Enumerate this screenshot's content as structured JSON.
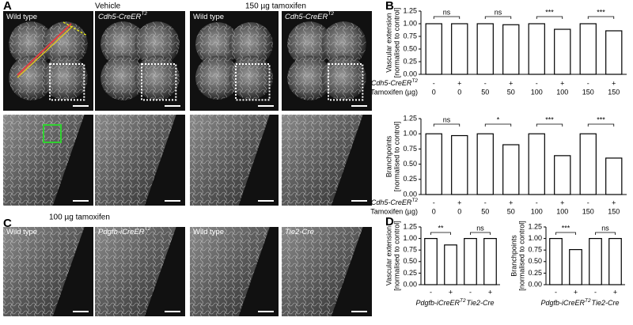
{
  "panels": {
    "A": {
      "label": "A",
      "headers": [
        "Vehicle",
        "150 µg tamoxifen"
      ],
      "image_labels": [
        {
          "text": "Wild type"
        },
        {
          "text": "Cdh5-CreER",
          "sup": "T2",
          "style": "italic"
        },
        {
          "text": "Wild type"
        },
        {
          "text": "Cdh5-CreER",
          "sup": "T2",
          "style": "italic"
        }
      ]
    },
    "C": {
      "label": "C",
      "headers": [
        "100 µg tamoxifen"
      ],
      "image_labels": [
        {
          "text": "Wild type"
        },
        {
          "text": "Pdgfb-iCreER",
          "sup": "T2",
          "style": "italic"
        },
        {
          "text": "Wild type"
        },
        {
          "text": "Tie2-Cre",
          "style": "italic"
        }
      ]
    }
  },
  "chart_data": [
    {
      "type": "bar",
      "panel_label": "B",
      "ylabel": "Vascular extension",
      "ylabel_note": "[normalised to control]",
      "categories": [
        "-",
        "+",
        "-",
        "+",
        "-",
        "+",
        "-",
        "+"
      ],
      "row1_name": {
        "text": "Cdh5-CreER",
        "sup": "T2",
        "style": "italic"
      },
      "row2_name": "Tamoxifen (µg)",
      "row2": [
        "0",
        "0",
        "50",
        "50",
        "100",
        "100",
        "150",
        "150"
      ],
      "values": [
        1.0,
        1.0,
        1.0,
        0.98,
        1.0,
        0.89,
        1.0,
        0.86
      ],
      "significance": [
        "ns",
        "ns",
        "***",
        "***"
      ],
      "color": "#ffffff",
      "edgecolor": "#000000",
      "ylim": [
        0,
        1.25
      ],
      "yticks": [
        {
          "value": 0,
          "label": "0.00"
        },
        {
          "value": 0.25,
          "label": "0.25"
        },
        {
          "value": 0.5,
          "label": "0.50"
        },
        {
          "value": 0.75,
          "label": "0.75"
        },
        {
          "value": 1,
          "label": "1.00"
        },
        {
          "value": 1.25,
          "label": "1.25"
        }
      ]
    },
    {
      "type": "bar",
      "ylabel": "Branchpoints",
      "ylabel_note": "[normalised to control]",
      "categories": [
        "-",
        "+",
        "-",
        "+",
        "-",
        "+",
        "-",
        "+"
      ],
      "row1_name": {
        "text": "Cdh5-CreER",
        "sup": "T2",
        "style": "italic"
      },
      "row2_name": "Tamoxifen (µg)",
      "row2": [
        "0",
        "0",
        "50",
        "50",
        "100",
        "100",
        "150",
        "150"
      ],
      "values": [
        1.0,
        0.97,
        1.0,
        0.82,
        1.0,
        0.64,
        1.0,
        0.6
      ],
      "significance": [
        "ns",
        "*",
        "***",
        "***"
      ],
      "color": "#ffffff",
      "edgecolor": "#000000",
      "ylim": [
        0,
        1.25
      ],
      "yticks": [
        {
          "value": 0,
          "label": "0.00"
        },
        {
          "value": 0.25,
          "label": "0.25"
        },
        {
          "value": 0.5,
          "label": "0.50"
        },
        {
          "value": 0.75,
          "label": "0.75"
        },
        {
          "value": 1,
          "label": "1.00"
        },
        {
          "value": 1.25,
          "label": "1.25"
        }
      ]
    },
    {
      "type": "bar",
      "panel_label": "D",
      "ylabel": "Vascular extension",
      "ylabel_note": "[normalised to control]",
      "categories": [
        "-",
        "+",
        "-",
        "+"
      ],
      "group_labels": [
        {
          "text": "Pdgfb-iCreER",
          "sup": "T2",
          "style": "italic"
        },
        {
          "text": "Tie2-Cre",
          "style": "italic"
        }
      ],
      "values": [
        1.0,
        0.86,
        1.0,
        1.0
      ],
      "significance": [
        "**",
        "ns"
      ],
      "color": "#ffffff",
      "edgecolor": "#000000",
      "ylim": [
        0,
        1.25
      ],
      "yticks": [
        {
          "value": 0,
          "label": "0.00"
        },
        {
          "value": 0.25,
          "label": "0.25"
        },
        {
          "value": 0.5,
          "label": "0.50"
        },
        {
          "value": 0.75,
          "label": "0.75"
        },
        {
          "value": 1,
          "label": "1.00"
        },
        {
          "value": 1.25,
          "label": "1.25"
        }
      ]
    },
    {
      "type": "bar",
      "ylabel": "Branchpoints",
      "ylabel_note": "[normalised to control]",
      "categories": [
        "-",
        "+",
        "-",
        "+"
      ],
      "group_labels": [
        {
          "text": "Pdgfb-iCreER",
          "sup": "T2",
          "style": "italic"
        },
        {
          "text": "Tie2-Cre",
          "style": "italic"
        }
      ],
      "values": [
        1.0,
        0.76,
        1.0,
        1.0
      ],
      "significance": [
        "***",
        "ns"
      ],
      "color": "#ffffff",
      "edgecolor": "#000000",
      "ylim": [
        0,
        1.25
      ],
      "yticks": [
        {
          "value": 0,
          "label": "0.00"
        },
        {
          "value": 0.25,
          "label": "0.25"
        },
        {
          "value": 0.5,
          "label": "0.50"
        },
        {
          "value": 0.75,
          "label": "0.75"
        },
        {
          "value": 1,
          "label": "1.00"
        },
        {
          "value": 1.25,
          "label": "1.25"
        }
      ]
    }
  ]
}
